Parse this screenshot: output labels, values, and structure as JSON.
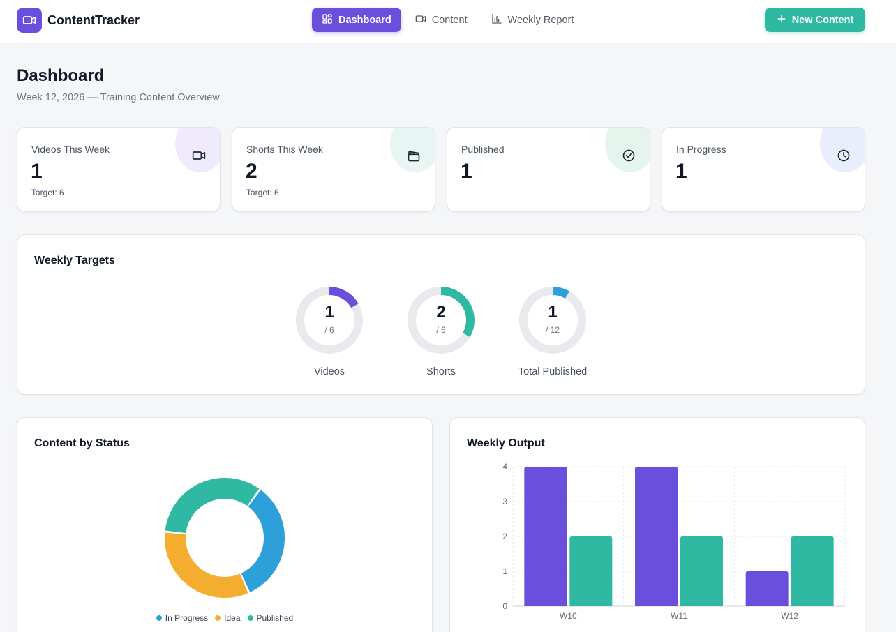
{
  "app": {
    "name": "ContentTracker",
    "logo_icon": "video-camera-icon"
  },
  "nav": {
    "items": [
      {
        "label": "Dashboard",
        "icon": "grid-icon",
        "active": true
      },
      {
        "label": "Content",
        "icon": "video-camera-icon",
        "active": false
      },
      {
        "label": "Weekly Report",
        "icon": "bar-chart-icon",
        "active": false
      }
    ]
  },
  "actions": {
    "new_content": "New Content"
  },
  "page": {
    "title": "Dashboard",
    "subtitle": "Week 12, 2026 — Training Content Overview"
  },
  "stats": [
    {
      "label": "Videos This Week",
      "value": "1",
      "target": "Target: 6",
      "icon": "video-camera-icon",
      "tint": "#efeafc",
      "icon_color": "#1f2937"
    },
    {
      "label": "Shorts This Week",
      "value": "2",
      "target": "Target: 6",
      "icon": "clapperboard-icon",
      "tint": "#e8f6f3",
      "icon_color": "#1f2937"
    },
    {
      "label": "Published",
      "value": "1",
      "target": "",
      "icon": "check-circle-icon",
      "tint": "#e5f5ee",
      "icon_color": "#1f2937"
    },
    {
      "label": "In Progress",
      "value": "1",
      "target": "",
      "icon": "clock-icon",
      "tint": "#e8eefc",
      "icon_color": "#1f2937"
    }
  ],
  "weekly_targets": {
    "title": "Weekly Targets",
    "gauges": [
      {
        "label": "Videos",
        "value": 1,
        "total": 6,
        "value_text": "1",
        "total_text": "/ 6",
        "color": "#6a4fdc"
      },
      {
        "label": "Shorts",
        "value": 2,
        "total": 6,
        "value_text": "2",
        "total_text": "/ 6",
        "color": "#2fb9a3"
      },
      {
        "label": "Total Published",
        "value": 1,
        "total": 12,
        "value_text": "1",
        "total_text": "/ 12",
        "color": "#2d9fd9"
      }
    ]
  },
  "status_chart": {
    "title": "Content by Status",
    "chart_data": {
      "type": "pie",
      "categories": [
        "In Progress",
        "Idea",
        "Published"
      ],
      "values": [
        1,
        1,
        1
      ],
      "colors": [
        "#2d9fd9",
        "#f5ad2f",
        "#2fb9a3"
      ],
      "legend": "bottom"
    }
  },
  "output_chart": {
    "title": "Weekly Output",
    "chart_data": {
      "type": "bar",
      "categories": [
        "W10",
        "W11",
        "W12"
      ],
      "series": [
        {
          "values": [
            4,
            4,
            1
          ],
          "color": "#6a4fdc"
        },
        {
          "values": [
            2,
            2,
            2
          ],
          "color": "#2fb9a3"
        }
      ],
      "ylim": [
        0,
        4
      ],
      "yticks": [
        "0",
        "1",
        "2",
        "3",
        "4"
      ],
      "grid": true
    }
  }
}
